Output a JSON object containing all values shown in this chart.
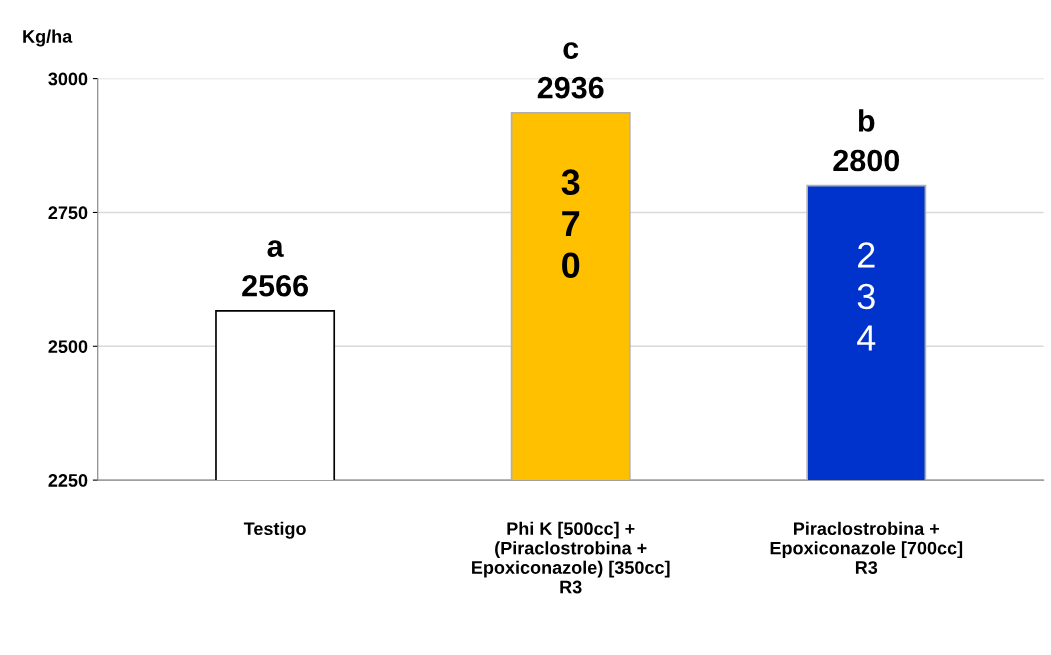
{
  "chart_data": {
    "type": "bar",
    "ylabel": "Kg/ha",
    "categories": [
      "Testigo",
      "Phi K [500cc] +\n(Piraclostrobina +\nEpoxiconazole) [350cc]\nR3",
      "Piraclostrobina +\nEpoxiconazole [700cc]\nR3"
    ],
    "values": [
      2566,
      2936,
      2800
    ],
    "colors": [
      "#ffffff",
      "#ffc000",
      "#0033cc"
    ],
    "value_labels": [
      "a\n2566",
      "c\n2936",
      "b\n2800"
    ],
    "annotations": [
      "3\n7\n0",
      "2\n3\n4"
    ],
    "ylim": [
      2250,
      3000
    ],
    "yticks": [
      2250,
      2500,
      2750,
      3000
    ],
    "grid": "y"
  }
}
